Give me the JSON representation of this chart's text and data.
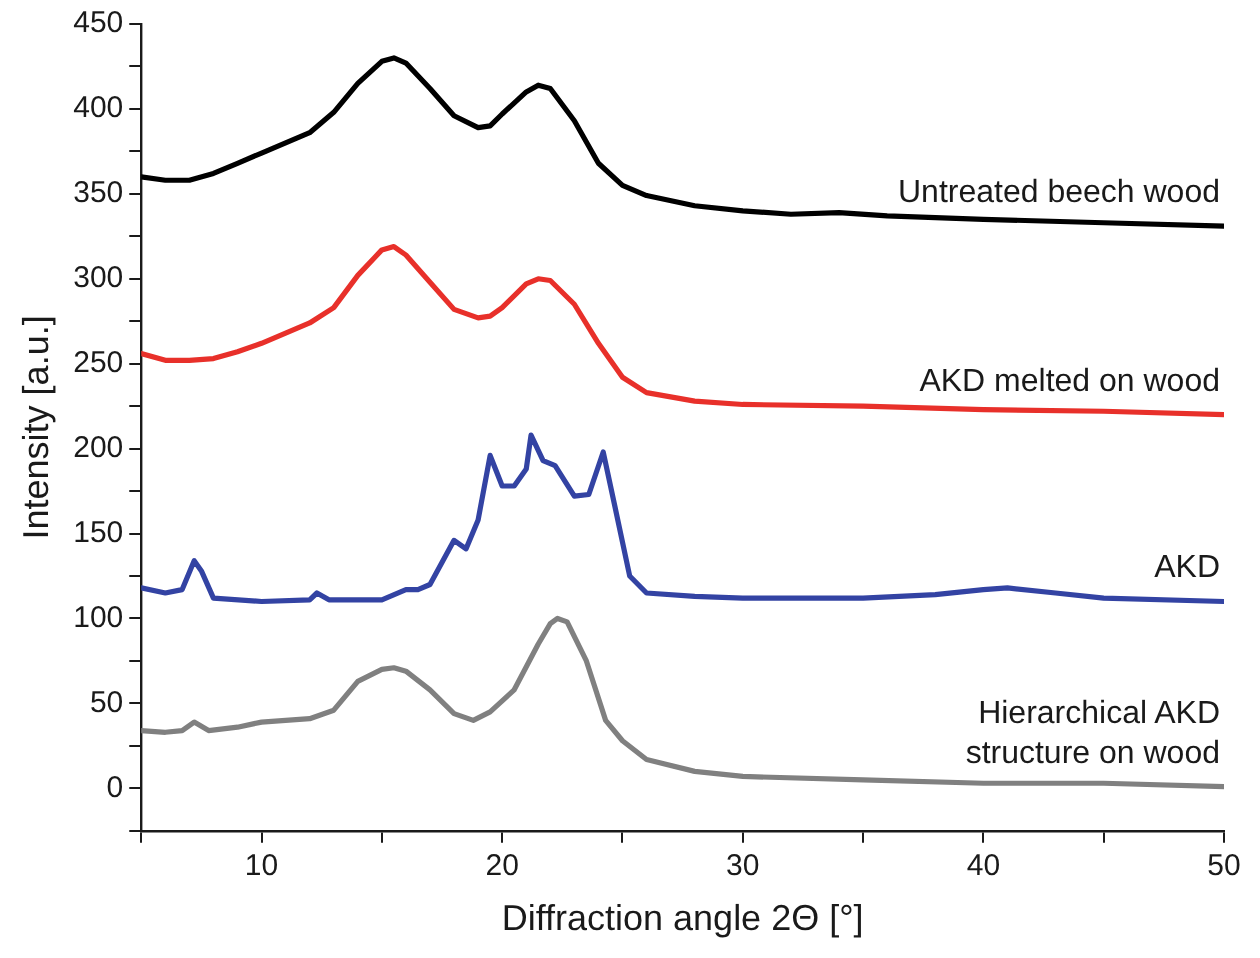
{
  "chart_data": {
    "type": "line",
    "xlabel": "Diffraction angle 2Θ [°]",
    "ylabel": "Intensity [a.u.]",
    "xlim": [
      5,
      50
    ],
    "ylim": [
      -25,
      450
    ],
    "xticks": [
      {
        "value": 5,
        "label": null
      },
      10,
      {
        "value": 15,
        "label": null
      },
      20,
      {
        "value": 25,
        "label": null
      },
      30,
      {
        "value": 35,
        "label": null
      },
      40,
      {
        "value": 45,
        "label": null
      },
      50
    ],
    "yticks": [
      {
        "value": -25,
        "label": null
      },
      0,
      {
        "value": 25,
        "label": null
      },
      50,
      {
        "value": 75,
        "label": null
      },
      100,
      {
        "value": 125,
        "label": null
      },
      150,
      {
        "value": 175,
        "label": null
      },
      200,
      {
        "value": 225,
        "label": null
      },
      250,
      {
        "value": 275,
        "label": null
      },
      300,
      {
        "value": 325,
        "label": null
      },
      350,
      {
        "value": 375,
        "label": null
      },
      400,
      {
        "value": 425,
        "label": null
      },
      450
    ],
    "grid": false,
    "legend": false,
    "marker": "none",
    "line_style": "solid",
    "series": [
      {
        "name": "Untreated beech wood",
        "color": "#000000",
        "x": [
          5,
          6,
          7,
          8,
          9,
          10,
          11,
          12,
          13,
          14,
          15,
          15.5,
          16,
          17,
          18,
          19,
          19.5,
          20,
          21,
          21.5,
          22,
          23,
          24,
          25,
          26,
          28,
          30,
          32,
          34,
          36,
          40,
          45,
          50
        ],
        "values": [
          360,
          358,
          358,
          362,
          368,
          374,
          380,
          386,
          398,
          415,
          428,
          430,
          427,
          412,
          396,
          389,
          390,
          397,
          410,
          414,
          412,
          393,
          368,
          355,
          349,
          343,
          340,
          338,
          339,
          337,
          335,
          333,
          331
        ]
      },
      {
        "name": "AKD melted on wood",
        "color": "#e8302a",
        "x": [
          5,
          6,
          7,
          8,
          9,
          10,
          11,
          12,
          13,
          14,
          15,
          15.5,
          16,
          17,
          18,
          19,
          19.5,
          20,
          21,
          21.5,
          22,
          23,
          24,
          25,
          26,
          28,
          30,
          35,
          40,
          45,
          50
        ],
        "values": [
          256,
          252,
          252,
          253,
          257,
          262,
          268,
          274,
          283,
          302,
          317,
          319,
          314,
          298,
          282,
          277,
          278,
          283,
          297,
          300,
          299,
          285,
          262,
          242,
          233,
          228,
          226,
          225,
          223,
          222,
          220
        ]
      },
      {
        "name": "AKD",
        "color": "#3343a3",
        "x": [
          5,
          6,
          6.7,
          7.2,
          7.5,
          8,
          10,
          12,
          12.3,
          12.8,
          15,
          16,
          16.5,
          17,
          18,
          18.5,
          19,
          19.5,
          20,
          20.5,
          21,
          21.2,
          21.7,
          22.2,
          23,
          23.6,
          24.2,
          24.7,
          25.3,
          26,
          28,
          30,
          35,
          38,
          40,
          41,
          43,
          45,
          50
        ],
        "values": [
          118,
          115,
          117,
          134,
          128,
          112,
          110,
          111,
          115,
          111,
          111,
          117,
          117,
          120,
          146,
          141,
          158,
          196,
          178,
          178,
          188,
          208,
          193,
          190,
          172,
          173,
          198,
          165,
          125,
          115,
          113,
          112,
          112,
          114,
          117,
          118,
          115,
          112,
          110
        ]
      },
      {
        "name": "Hierarchical AKD structure on wood",
        "color": "#808080",
        "x": [
          5,
          6,
          6.7,
          7.2,
          7.8,
          9,
          10,
          11,
          12,
          13,
          14,
          15,
          15.5,
          16,
          17,
          18,
          18.8,
          19.5,
          20.5,
          21.5,
          22,
          22.3,
          22.7,
          23.5,
          24.3,
          25,
          26,
          28,
          30,
          35,
          40,
          45,
          50
        ],
        "values": [
          34,
          33,
          34,
          39,
          34,
          36,
          39,
          40,
          41,
          46,
          63,
          70,
          71,
          69,
          58,
          44,
          40,
          45,
          58,
          85,
          97,
          100,
          98,
          75,
          40,
          28,
          17,
          10,
          7,
          5,
          3,
          3,
          1
        ]
      }
    ]
  }
}
